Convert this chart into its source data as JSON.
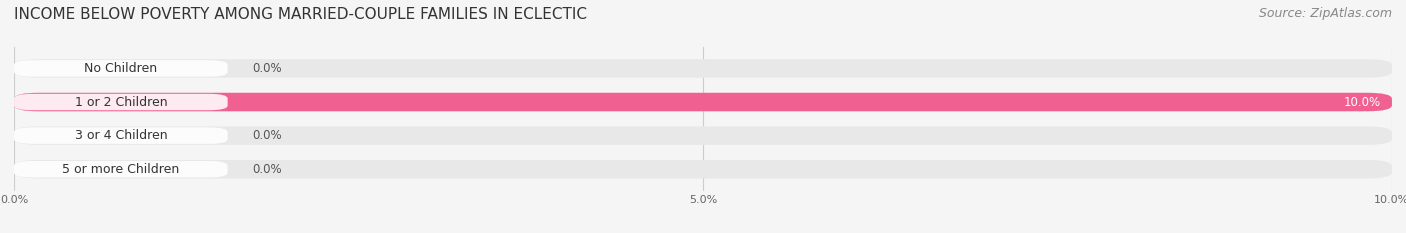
{
  "title": "INCOME BELOW POVERTY AMONG MARRIED-COUPLE FAMILIES IN ECLECTIC",
  "source": "Source: ZipAtlas.com",
  "categories": [
    "No Children",
    "1 or 2 Children",
    "3 or 4 Children",
    "5 or more Children"
  ],
  "values": [
    0.0,
    10.0,
    0.0,
    0.0
  ],
  "bar_colors": [
    "#a8b4e8",
    "#f06090",
    "#f5c98a",
    "#f0a0a0"
  ],
  "xlim": [
    0,
    10.0
  ],
  "xticks": [
    0.0,
    5.0,
    10.0
  ],
  "xtick_labels": [
    "0.0%",
    "5.0%",
    "10.0%"
  ],
  "background_color": "#f5f5f5",
  "bar_bg_color": "#e8e8e8",
  "title_fontsize": 11,
  "source_fontsize": 9,
  "bar_height": 0.55,
  "label_fontsize": 9,
  "value_fontsize": 8.5
}
